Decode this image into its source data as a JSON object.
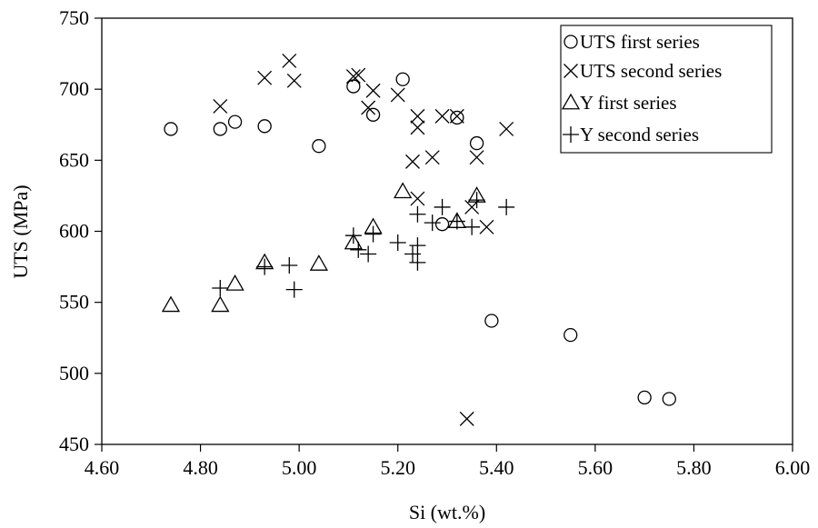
{
  "chart_data": {
    "type": "scatter",
    "title": "",
    "xlabel": "Si (wt.%)",
    "ylabel": "UTS (MPa)",
    "xlim": [
      4.6,
      6.0
    ],
    "ylim": [
      450,
      750
    ],
    "xticks": [
      "4.60",
      "4.80",
      "5.00",
      "5.20",
      "5.40",
      "5.60",
      "5.80",
      "6.00"
    ],
    "yticks": [
      "450",
      "500",
      "550",
      "600",
      "650",
      "700",
      "750"
    ],
    "grid": false,
    "legend_position": "top-right",
    "series": [
      {
        "name": "UTS first series",
        "marker": "circle",
        "points": [
          [
            4.74,
            672
          ],
          [
            4.84,
            672
          ],
          [
            4.87,
            677
          ],
          [
            4.93,
            674
          ],
          [
            5.04,
            660
          ],
          [
            5.11,
            702
          ],
          [
            5.15,
            682
          ],
          [
            5.21,
            707
          ],
          [
            5.29,
            605
          ],
          [
            5.32,
            680
          ],
          [
            5.36,
            662
          ],
          [
            5.39,
            537
          ],
          [
            5.55,
            527
          ],
          [
            5.7,
            483
          ],
          [
            5.75,
            482
          ]
        ]
      },
      {
        "name": "UTS second series",
        "marker": "x",
        "points": [
          [
            4.84,
            688
          ],
          [
            4.93,
            708
          ],
          [
            4.98,
            720
          ],
          [
            4.99,
            706
          ],
          [
            5.11,
            709
          ],
          [
            5.12,
            710
          ],
          [
            5.14,
            687
          ],
          [
            5.15,
            699
          ],
          [
            5.2,
            696
          ],
          [
            5.23,
            649
          ],
          [
            5.24,
            681
          ],
          [
            5.24,
            673
          ],
          [
            5.24,
            623
          ],
          [
            5.27,
            652
          ],
          [
            5.29,
            681
          ],
          [
            5.32,
            681
          ],
          [
            5.34,
            468
          ],
          [
            5.35,
            617
          ],
          [
            5.36,
            652
          ],
          [
            5.38,
            603
          ],
          [
            5.42,
            672
          ]
        ]
      },
      {
        "name": "Y first series",
        "marker": "triangle",
        "points": [
          [
            4.74,
            548
          ],
          [
            4.84,
            548
          ],
          [
            4.87,
            563
          ],
          [
            4.93,
            578
          ],
          [
            5.04,
            577
          ],
          [
            5.11,
            592
          ],
          [
            5.15,
            603
          ],
          [
            5.21,
            628
          ],
          [
            5.32,
            607
          ],
          [
            5.36,
            625
          ]
        ]
      },
      {
        "name": "Y second series",
        "marker": "plus",
        "points": [
          [
            4.84,
            560
          ],
          [
            4.93,
            575
          ],
          [
            4.98,
            576
          ],
          [
            4.99,
            559
          ],
          [
            5.11,
            597
          ],
          [
            5.12,
            587
          ],
          [
            5.14,
            584
          ],
          [
            5.15,
            598
          ],
          [
            5.2,
            592
          ],
          [
            5.23,
            584
          ],
          [
            5.24,
            612
          ],
          [
            5.24,
            590
          ],
          [
            5.24,
            578
          ],
          [
            5.27,
            606
          ],
          [
            5.29,
            617
          ],
          [
            5.32,
            607
          ],
          [
            5.35,
            603
          ],
          [
            5.36,
            622
          ],
          [
            5.42,
            617
          ]
        ]
      }
    ]
  }
}
